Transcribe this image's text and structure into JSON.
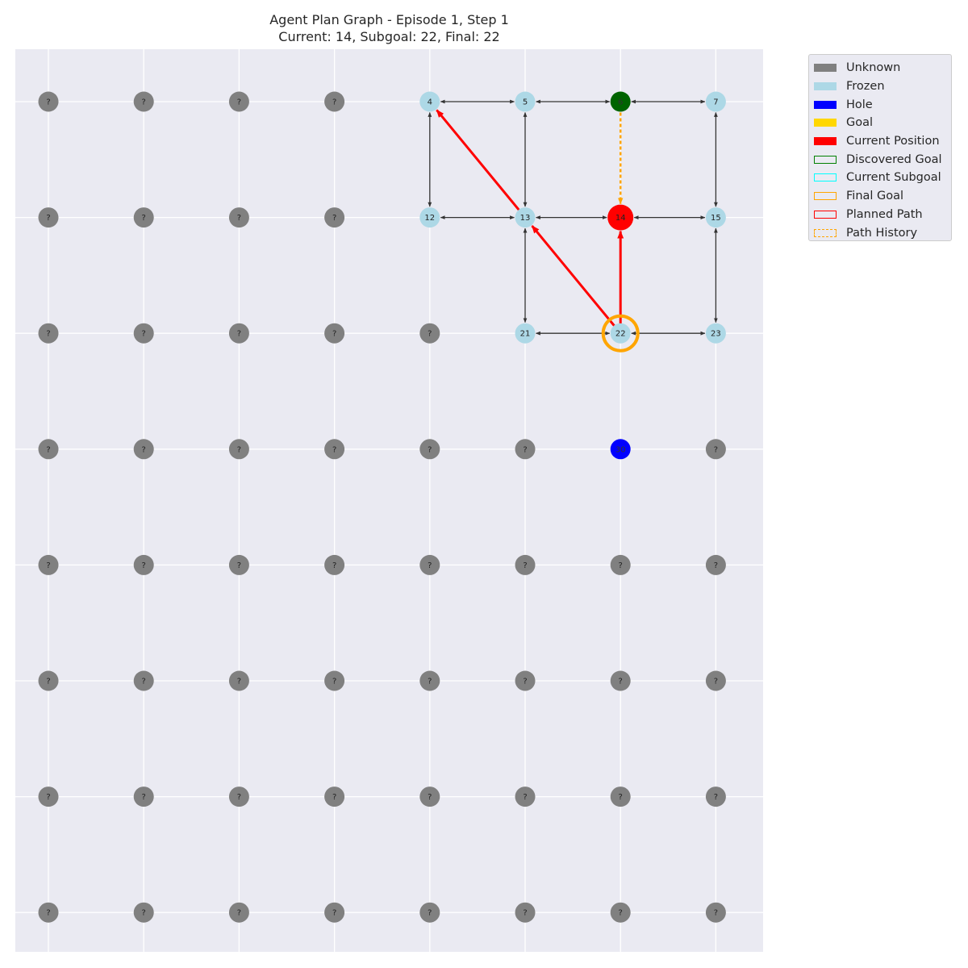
{
  "title_line1": "Agent Plan Graph - Episode 1, Step 1",
  "title_line2": "Current: 14, Subgoal: 22, Final: 22",
  "colors": {
    "unknown": "#808080",
    "frozen": "#add8e6",
    "hole": "#0000ff",
    "goal": "#ffd700",
    "current": "#ff0000",
    "discovered_goal": "#006400",
    "subgoal": "#00ffff",
    "final_goal": "#ffa500",
    "planned_path": "#ff0000",
    "history": "#ffa500",
    "edge": "#333333",
    "plot_bg": "#eaeaf2",
    "grid": "#ffffff"
  },
  "chart_data": {
    "type": "graph",
    "grid_cols": 8,
    "grid_rows": 8,
    "current": 14,
    "subgoal": 22,
    "final": 22,
    "grid": "on",
    "legend_placement": "outside-upper-right",
    "nodes": [
      {
        "id": 0,
        "status": "unknown",
        "label": "?"
      },
      {
        "id": 1,
        "status": "unknown",
        "label": "?"
      },
      {
        "id": 2,
        "status": "unknown",
        "label": "?"
      },
      {
        "id": 3,
        "status": "unknown",
        "label": "?"
      },
      {
        "id": 4,
        "status": "frozen",
        "label": "4"
      },
      {
        "id": 5,
        "status": "frozen",
        "label": "5"
      },
      {
        "id": 6,
        "status": "discovered_goal",
        "label": "6"
      },
      {
        "id": 7,
        "status": "frozen",
        "label": "7"
      },
      {
        "id": 8,
        "status": "unknown",
        "label": "?"
      },
      {
        "id": 9,
        "status": "unknown",
        "label": "?"
      },
      {
        "id": 10,
        "status": "unknown",
        "label": "?"
      },
      {
        "id": 11,
        "status": "unknown",
        "label": "?"
      },
      {
        "id": 12,
        "status": "frozen",
        "label": "12"
      },
      {
        "id": 13,
        "status": "frozen",
        "label": "13"
      },
      {
        "id": 14,
        "status": "current",
        "label": "14"
      },
      {
        "id": 15,
        "status": "frozen",
        "label": "15"
      },
      {
        "id": 16,
        "status": "unknown",
        "label": "?"
      },
      {
        "id": 17,
        "status": "unknown",
        "label": "?"
      },
      {
        "id": 18,
        "status": "unknown",
        "label": "?"
      },
      {
        "id": 19,
        "status": "unknown",
        "label": "?"
      },
      {
        "id": 20,
        "status": "unknown",
        "label": "?"
      },
      {
        "id": 21,
        "status": "frozen",
        "label": "21"
      },
      {
        "id": 22,
        "status": "frozen",
        "label": "22"
      },
      {
        "id": 23,
        "status": "frozen",
        "label": "23"
      },
      {
        "id": 24,
        "status": "unknown",
        "label": "?"
      },
      {
        "id": 25,
        "status": "unknown",
        "label": "?"
      },
      {
        "id": 26,
        "status": "unknown",
        "label": "?"
      },
      {
        "id": 27,
        "status": "unknown",
        "label": "?"
      },
      {
        "id": 28,
        "status": "unknown",
        "label": "?"
      },
      {
        "id": 29,
        "status": "unknown",
        "label": "?"
      },
      {
        "id": 30,
        "status": "hole",
        "label": "30"
      },
      {
        "id": 31,
        "status": "unknown",
        "label": "?"
      },
      {
        "id": 32,
        "status": "unknown",
        "label": "?"
      },
      {
        "id": 33,
        "status": "unknown",
        "label": "?"
      },
      {
        "id": 34,
        "status": "unknown",
        "label": "?"
      },
      {
        "id": 35,
        "status": "unknown",
        "label": "?"
      },
      {
        "id": 36,
        "status": "unknown",
        "label": "?"
      },
      {
        "id": 37,
        "status": "unknown",
        "label": "?"
      },
      {
        "id": 38,
        "status": "unknown",
        "label": "?"
      },
      {
        "id": 39,
        "status": "unknown",
        "label": "?"
      },
      {
        "id": 40,
        "status": "unknown",
        "label": "?"
      },
      {
        "id": 41,
        "status": "unknown",
        "label": "?"
      },
      {
        "id": 42,
        "status": "unknown",
        "label": "?"
      },
      {
        "id": 43,
        "status": "unknown",
        "label": "?"
      },
      {
        "id": 44,
        "status": "unknown",
        "label": "?"
      },
      {
        "id": 45,
        "status": "unknown",
        "label": "?"
      },
      {
        "id": 46,
        "status": "unknown",
        "label": "?"
      },
      {
        "id": 47,
        "status": "unknown",
        "label": "?"
      },
      {
        "id": 48,
        "status": "unknown",
        "label": "?"
      },
      {
        "id": 49,
        "status": "unknown",
        "label": "?"
      },
      {
        "id": 50,
        "status": "unknown",
        "label": "?"
      },
      {
        "id": 51,
        "status": "unknown",
        "label": "?"
      },
      {
        "id": 52,
        "status": "unknown",
        "label": "?"
      },
      {
        "id": 53,
        "status": "unknown",
        "label": "?"
      },
      {
        "id": 54,
        "status": "unknown",
        "label": "?"
      },
      {
        "id": 55,
        "status": "unknown",
        "label": "?"
      },
      {
        "id": 56,
        "status": "unknown",
        "label": "?"
      },
      {
        "id": 57,
        "status": "unknown",
        "label": "?"
      },
      {
        "id": 58,
        "status": "unknown",
        "label": "?"
      },
      {
        "id": 59,
        "status": "unknown",
        "label": "?"
      },
      {
        "id": 60,
        "status": "unknown",
        "label": "?"
      },
      {
        "id": 61,
        "status": "unknown",
        "label": "?"
      },
      {
        "id": 62,
        "status": "unknown",
        "label": "?"
      },
      {
        "id": 63,
        "status": "unknown",
        "label": "?"
      }
    ],
    "edges": [
      [
        4,
        5
      ],
      [
        5,
        6
      ],
      [
        6,
        7
      ],
      [
        4,
        12
      ],
      [
        5,
        13
      ],
      [
        7,
        15
      ],
      [
        12,
        13
      ],
      [
        13,
        14
      ],
      [
        14,
        15
      ],
      [
        13,
        21
      ],
      [
        15,
        23
      ],
      [
        21,
        22
      ],
      [
        22,
        23
      ]
    ],
    "planned_path": [
      [
        22,
        14
      ],
      [
        22,
        13
      ],
      [
        13,
        4
      ]
    ],
    "path_history": [
      [
        6,
        14
      ]
    ]
  },
  "legend": [
    {
      "label": "Unknown",
      "style": "fill",
      "color": "#808080"
    },
    {
      "label": "Frozen",
      "style": "fill",
      "color": "#add8e6"
    },
    {
      "label": "Hole",
      "style": "fill",
      "color": "#0000ff"
    },
    {
      "label": "Goal",
      "style": "fill",
      "color": "#ffd700"
    },
    {
      "label": "Current Position",
      "style": "fill",
      "color": "#ff0000"
    },
    {
      "label": "Discovered Goal",
      "style": "outline",
      "color": "#008000"
    },
    {
      "label": "Current Subgoal",
      "style": "outline",
      "color": "#00ffff"
    },
    {
      "label": "Final Goal",
      "style": "outline",
      "color": "#ffa500"
    },
    {
      "label": "Planned Path",
      "style": "outline",
      "color": "#ff0000"
    },
    {
      "label": "Path History",
      "style": "dashed",
      "color": "#ffa500"
    }
  ]
}
